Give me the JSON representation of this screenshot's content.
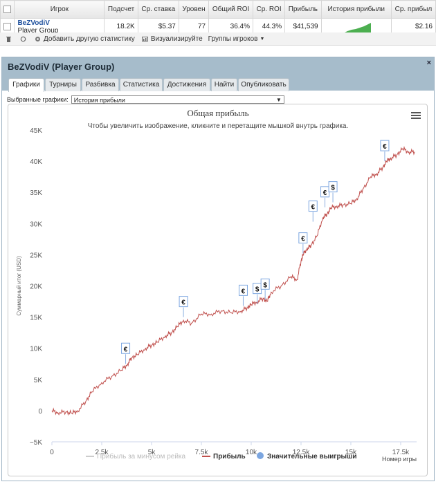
{
  "table": {
    "headers": [
      "Игрок",
      "Подсчет",
      "Ср. ставка",
      "Уровен",
      "Общий ROI",
      "Ср. ROI",
      "Прибыль",
      "История прибыли",
      "Ср. прибыл"
    ],
    "row": {
      "name": "BeZVodiV",
      "group": "Player Group",
      "count": "18.2K",
      "avg_stake": "$5.37",
      "level": "77",
      "total_roi": "36.4%",
      "avg_roi": "44.3%",
      "profit": "$41,539",
      "avg_profit": "$2.16"
    }
  },
  "toolbar": {
    "add_stats": "Добавить другую статистику",
    "visualize": "Визуализируйте",
    "player_groups": "Группы игроков"
  },
  "panel": {
    "title": "BeZVodiV (Player Group)",
    "close": "×",
    "tabs": [
      "Графики",
      "Турниры",
      "Разбивка",
      "Статистика",
      "Достижения",
      "Найти",
      "Опубликовать"
    ],
    "selector_label": "Выбранные графики:",
    "selector_value": "История прибыли"
  },
  "colors": {
    "profit_line": "#c0504d",
    "rake_line": "#cccccc",
    "wins_marker": "#7ca6e0",
    "header_bg": "#a6bccb"
  },
  "chart_data": {
    "type": "line",
    "title": "Общая прибыль",
    "subtitle": "Чтобы увеличить изображение, кликните и перетащите мышкой внутрь графика.",
    "xlabel": "Номер игры",
    "ylabel": "Суммарный итог (USD)",
    "xlim": [
      0,
      18300
    ],
    "ylim": [
      -5000,
      45000
    ],
    "x_ticks": [
      0,
      2500,
      5000,
      7500,
      10000,
      12500,
      15000,
      17500
    ],
    "x_tick_labels": [
      "0",
      "2.5k",
      "5k",
      "7.5k",
      "10k",
      "12.5k",
      "15k",
      "17.5k"
    ],
    "y_ticks": [
      -5000,
      0,
      5000,
      10000,
      15000,
      20000,
      25000,
      30000,
      35000,
      40000,
      45000
    ],
    "y_tick_labels": [
      "−5K",
      "0",
      "5K",
      "10K",
      "15K",
      "20K",
      "25K",
      "30K",
      "35K",
      "40K",
      "45K"
    ],
    "legend_position": "bottom",
    "series": [
      {
        "name": "Прибыль за минусом рейка",
        "values": []
      },
      {
        "name": "Прибыль",
        "x": [
          0,
          300,
          700,
          1000,
          1300,
          1700,
          2000,
          2500,
          3000,
          3500,
          3800,
          4000,
          4300,
          4700,
          5000,
          5300,
          5700,
          6000,
          6300,
          6600,
          7000,
          7500,
          8000,
          8500,
          9000,
          9500,
          9800,
          10000,
          10300,
          10600,
          10800,
          11000,
          11500,
          12000,
          12300,
          12500,
          12600,
          12800,
          13000,
          13300,
          13600,
          13800,
          14000,
          14300,
          14600,
          15000,
          15300,
          15600,
          16000,
          16300,
          16600,
          16800,
          17000,
          17300,
          17600,
          17900,
          18200
        ],
        "values": [
          0,
          -300,
          -200,
          -400,
          0,
          1500,
          3000,
          4500,
          5500,
          6500,
          7500,
          8500,
          9000,
          10000,
          10500,
          11000,
          12000,
          12500,
          13500,
          14500,
          14000,
          15500,
          15500,
          16000,
          15700,
          16000,
          16500,
          17000,
          17500,
          18000,
          17500,
          19000,
          20000,
          21500,
          21000,
          24000,
          25000,
          26000,
          26500,
          28000,
          31000,
          31500,
          32500,
          32800,
          33000,
          33200,
          34000,
          35500,
          37500,
          38000,
          39000,
          40000,
          40500,
          41000,
          42000,
          41500,
          41500
        ]
      },
      {
        "name": "Значительные выигрыши",
        "points": [
          {
            "x": 3700,
            "y": 7500,
            "symbol": "€"
          },
          {
            "x": 6600,
            "y": 15000,
            "symbol": "€"
          },
          {
            "x": 9600,
            "y": 16800,
            "symbol": "€"
          },
          {
            "x": 10300,
            "y": 17100,
            "symbol": "$"
          },
          {
            "x": 10700,
            "y": 17800,
            "symbol": "$"
          },
          {
            "x": 12600,
            "y": 25200,
            "symbol": "€"
          },
          {
            "x": 13100,
            "y": 30300,
            "symbol": "€"
          },
          {
            "x": 13700,
            "y": 32600,
            "symbol": "€"
          },
          {
            "x": 14100,
            "y": 33400,
            "symbol": "$"
          },
          {
            "x": 16700,
            "y": 40000,
            "symbol": "€"
          }
        ]
      }
    ]
  }
}
